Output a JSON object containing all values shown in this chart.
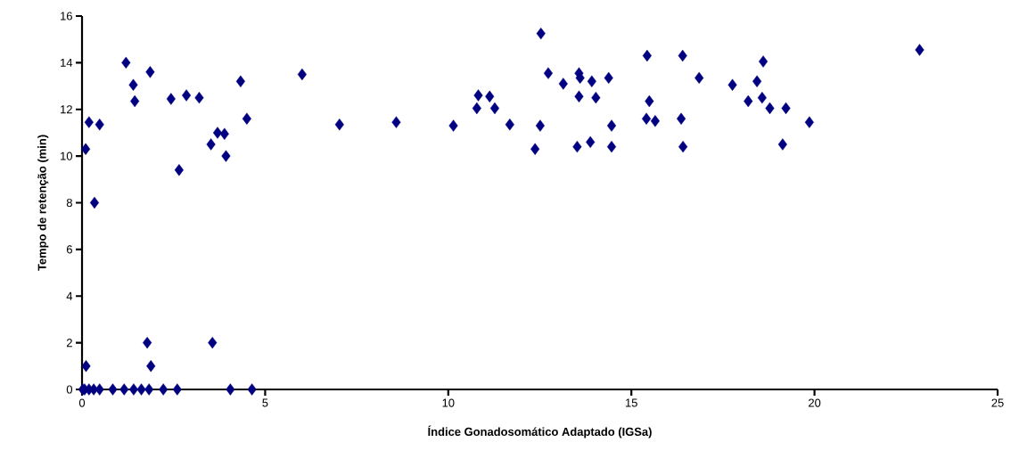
{
  "chart_data": {
    "type": "scatter",
    "xlabel": "Índice Gonadosomático Adaptado (IGSa)",
    "ylabel": "Tempo de retenção (min)",
    "xlim": [
      0,
      25
    ],
    "xticks": [
      0,
      5,
      10,
      15,
      20,
      25
    ],
    "ylim": [
      0,
      16
    ],
    "yticks": [
      0,
      2,
      4,
      6,
      8,
      10,
      12,
      14,
      16
    ],
    "marker": "diamond",
    "grid": false,
    "series": [
      {
        "color": "#000080",
        "x": [
          1.2,
          1.86,
          1.4,
          1.44,
          0.19,
          0.48,
          0.1,
          0.34,
          2.43,
          2.85,
          3.2,
          2.65,
          4.33,
          4.5,
          3.7,
          3.89,
          3.52,
          3.93,
          1.78,
          1.88,
          3.56,
          0.11,
          0.02,
          0.07,
          0.19,
          0.32,
          0.48,
          0.84,
          1.15,
          1.41,
          1.62,
          1.83,
          2.22,
          2.6,
          4.05,
          4.64,
          6.01,
          7.03,
          8.58,
          10.14,
          10.82,
          11.13,
          10.78,
          11.27,
          11.68,
          12.53,
          12.73,
          13.14,
          13.57,
          13.6,
          13.92,
          14.38,
          13.57,
          14.03,
          12.51,
          12.37,
          13.52,
          13.88,
          14.46,
          14.46,
          15.43,
          16.4,
          18.6,
          16.85,
          17.76,
          18.43,
          15.49,
          18.19,
          18.57,
          18.78,
          19.22,
          15.41,
          15.65,
          16.36,
          19.86,
          16.41,
          19.13,
          22.87
        ],
        "values": [
          14.0,
          13.6,
          13.05,
          12.35,
          11.45,
          11.35,
          10.3,
          8.0,
          12.45,
          12.6,
          12.5,
          9.4,
          13.2,
          11.6,
          11.0,
          10.95,
          10.5,
          10.0,
          2.0,
          1.0,
          2.0,
          1.0,
          0,
          0,
          0,
          0,
          0,
          0,
          0,
          0,
          0,
          0,
          0,
          0,
          0,
          0,
          13.5,
          11.35,
          11.45,
          11.3,
          12.6,
          12.55,
          12.05,
          12.05,
          11.35,
          15.25,
          13.55,
          13.1,
          13.55,
          13.35,
          13.2,
          13.35,
          12.55,
          12.5,
          11.3,
          10.3,
          10.4,
          10.6,
          11.3,
          10.4,
          14.3,
          14.3,
          14.05,
          13.35,
          13.05,
          13.2,
          12.35,
          12.35,
          12.5,
          12.05,
          12.05,
          11.6,
          11.5,
          11.6,
          11.45,
          10.4,
          10.5,
          14.55
        ]
      }
    ]
  }
}
